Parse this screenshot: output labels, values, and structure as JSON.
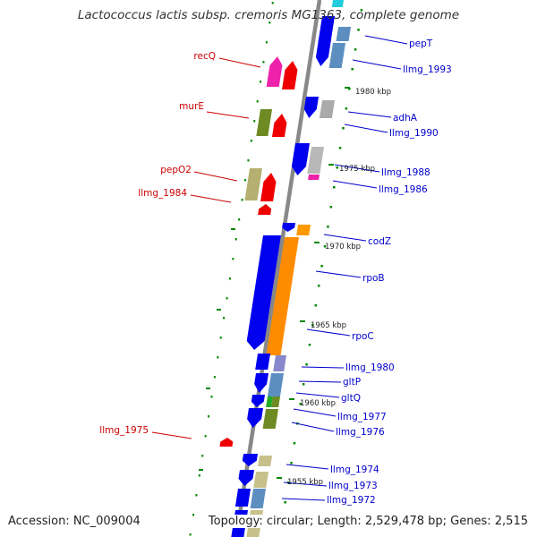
{
  "title": "Lactococcus lactis subsp. cremoris MG1363, complete genome",
  "footer": {
    "accession": "Accession: NC_009004",
    "topology": "Topology: circular; Length: 2,529,478 bp; Genes: 2,515"
  },
  "colors": {
    "forward_label": "#cc0000",
    "reverse_label": "#0000cc",
    "backbone": "#888888",
    "ticks": "#008800"
  },
  "kbp_marks": [
    "1980 kbp",
    "1975 kbp",
    "1970 kbp",
    "1965 kbp",
    "1960 kbp",
    "1955 kbp"
  ],
  "gene_labels": {
    "forward": [
      "recQ",
      "murE",
      "pepO2",
      "llmg_1984",
      "llmg_1975"
    ],
    "reverse": [
      "pepT",
      "llmg_1993",
      "adhA",
      "llmg_1990",
      "llmg_1988",
      "llmg_1986",
      "codZ",
      "rpoB",
      "rpoC",
      "llmg_1980",
      "gltP",
      "gltQ",
      "llmg_1977",
      "llmg_1976",
      "llmg_1974",
      "llmg_1973",
      "llmg_1972"
    ]
  }
}
